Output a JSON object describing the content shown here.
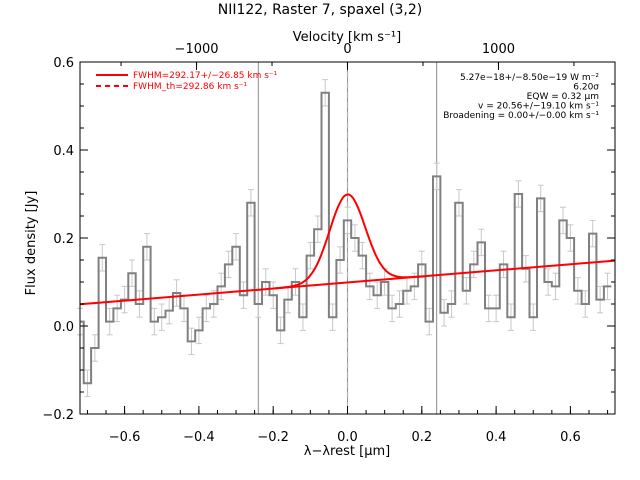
{
  "chart_data": {
    "type": "line",
    "title": "NII122, Raster 7, spaxel (3,2)",
    "xlabel": "λ−λrest [μm]",
    "ylabel": "Flux density [Jy]",
    "top_axis_label": "Velocity [km s⁻¹]",
    "xlim": [
      -0.72,
      0.72
    ],
    "ylim": [
      -0.2,
      0.6
    ],
    "top_xlim_kms": [
      -1772,
      1772
    ],
    "x_ticks": [
      -0.6,
      -0.4,
      -0.2,
      0.0,
      0.2,
      0.4,
      0.6
    ],
    "x_tick_labels": [
      "−0.6",
      "−0.4",
      "−0.2",
      "0.0",
      "0.2",
      "0.4",
      "0.6"
    ],
    "y_ticks": [
      -0.2,
      0.0,
      0.2,
      0.4,
      0.6
    ],
    "y_tick_labels": [
      "−0.2",
      "0.0",
      "0.2",
      "0.4",
      "0.6"
    ],
    "top_ticks_kms": [
      -1000,
      0,
      1000
    ],
    "top_tick_labels": [
      "−1000",
      "0",
      "1000"
    ],
    "vertical_lines_x": [
      -0.24,
      0.0,
      0.24
    ],
    "rest_line_x": 0.0,
    "spectrum": {
      "x": [
        -0.72,
        -0.7,
        -0.68,
        -0.66,
        -0.64,
        -0.62,
        -0.6,
        -0.58,
        -0.56,
        -0.54,
        -0.52,
        -0.5,
        -0.48,
        -0.46,
        -0.44,
        -0.42,
        -0.4,
        -0.38,
        -0.36,
        -0.34,
        -0.32,
        -0.3,
        -0.28,
        -0.26,
        -0.24,
        -0.22,
        -0.2,
        -0.18,
        -0.16,
        -0.14,
        -0.12,
        -0.1,
        -0.08,
        -0.06,
        -0.04,
        -0.02,
        0.0,
        0.02,
        0.04,
        0.06,
        0.08,
        0.1,
        0.12,
        0.14,
        0.16,
        0.18,
        0.2,
        0.22,
        0.24,
        0.26,
        0.28,
        0.3,
        0.32,
        0.34,
        0.36,
        0.38,
        0.4,
        0.42,
        0.44,
        0.46,
        0.48,
        0.5,
        0.52,
        0.54,
        0.56,
        0.58,
        0.6,
        0.62,
        0.64,
        0.66,
        0.68,
        0.7
      ],
      "y": [
        0.01,
        -0.13,
        -0.05,
        0.155,
        0.01,
        0.04,
        0.06,
        0.12,
        0.05,
        0.18,
        0.01,
        0.02,
        0.035,
        0.075,
        0.04,
        -0.035,
        -0.01,
        0.04,
        0.05,
        0.09,
        0.14,
        0.18,
        0.07,
        0.28,
        0.05,
        0.1,
        0.07,
        -0.01,
        0.06,
        0.1,
        0.02,
        0.16,
        0.22,
        0.53,
        0.02,
        0.15,
        0.24,
        0.2,
        0.16,
        0.09,
        0.07,
        0.1,
        0.04,
        0.05,
        0.08,
        0.09,
        0.14,
        0.01,
        0.34,
        0.03,
        0.05,
        0.28,
        0.08,
        0.14,
        0.19,
        0.04,
        0.04,
        0.14,
        0.02,
        0.3,
        0.13,
        0.02,
        0.29,
        0.1,
        0.09,
        0.24,
        0.2,
        0.08,
        0.05,
        0.21,
        0.06,
        0.09
      ],
      "err": [
        0.03,
        0.03,
        0.03,
        0.03,
        0.03,
        0.03,
        0.03,
        0.03,
        0.03,
        0.03,
        0.03,
        0.03,
        0.03,
        0.03,
        0.03,
        0.03,
        0.03,
        0.03,
        0.03,
        0.03,
        0.03,
        0.03,
        0.03,
        0.03,
        0.03,
        0.03,
        0.03,
        0.03,
        0.03,
        0.03,
        0.03,
        0.03,
        0.03,
        0.03,
        0.03,
        0.03,
        0.03,
        0.03,
        0.03,
        0.03,
        0.03,
        0.03,
        0.03,
        0.03,
        0.03,
        0.03,
        0.03,
        0.03,
        0.03,
        0.03,
        0.03,
        0.03,
        0.03,
        0.03,
        0.03,
        0.03,
        0.03,
        0.03,
        0.03,
        0.03,
        0.03,
        0.03,
        0.03,
        0.03,
        0.03,
        0.03,
        0.03,
        0.03,
        0.03,
        0.03,
        0.03,
        0.03
      ],
      "bin_width": 0.02,
      "color": "#808080"
    },
    "fit": {
      "continuum_intercept": 0.099,
      "continuum_slope": 0.069,
      "gaussian_amplitude": 0.2,
      "gaussian_center": 0.0,
      "gaussian_sigma": 0.048,
      "color": "#ff0000"
    },
    "legend": [
      {
        "label": "FWHM=292.17+/−26.85 km s⁻¹",
        "style": "solid",
        "color": "#ff0000"
      },
      {
        "label": "FWHM_th=292.86 km s⁻¹",
        "style": "dashed",
        "color": "#ff0000"
      }
    ],
    "annotations": [
      "5.27e−18+/−8.50e−19 W m⁻²",
      "6.20σ",
      "EQW = 0.32 μm",
      "v = 20.56+/−19.10 km s⁻¹",
      "Broadening = 0.00+/−0.00 km s⁻¹"
    ]
  }
}
